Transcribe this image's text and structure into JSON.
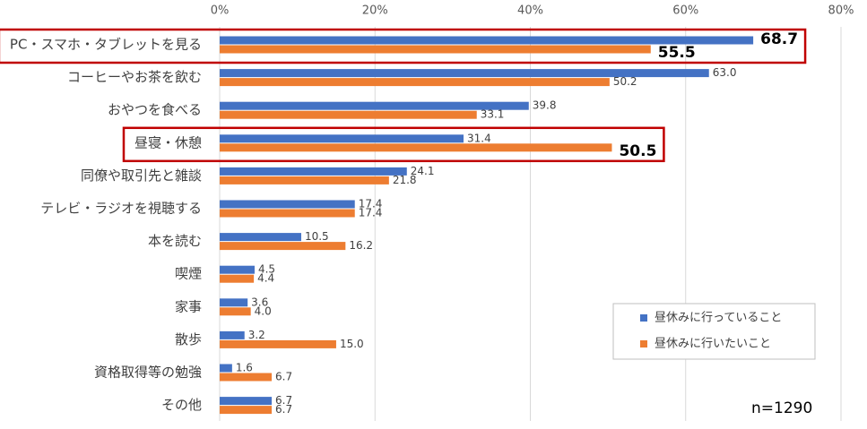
{
  "chart_data": {
    "type": "bar",
    "orientation": "horizontal",
    "categories": [
      "PC・スマホ・タブレットを見る",
      "コーヒーやお茶を飲む",
      "おやつを食べる",
      "昼寝・休憩",
      "同僚や取引先と雑談",
      "テレビ・ラジオを視聴する",
      "本を読む",
      "喫煙",
      "家事",
      "散歩",
      "資格取得等の勉強",
      "その他"
    ],
    "series": [
      {
        "name": "昼休みに行っていること",
        "color": "#4472c4",
        "values": [
          68.7,
          63.0,
          39.8,
          31.4,
          24.1,
          17.4,
          10.5,
          4.5,
          3.6,
          3.2,
          1.6,
          6.7
        ],
        "value_labels": [
          "68.7",
          "63.0",
          "39.8",
          "31.4",
          "24.1",
          "17.4",
          "10.5",
          "4.5",
          "3.6",
          "3.2",
          "1.6",
          "6.7"
        ],
        "bold_labels": [
          0
        ]
      },
      {
        "name": "昼休みに行いたいこと",
        "color": "#ed7d31",
        "values": [
          55.5,
          50.2,
          33.1,
          50.5,
          21.8,
          17.4,
          16.2,
          4.4,
          4.0,
          15.0,
          6.7,
          6.7
        ],
        "value_labels": [
          "55.5",
          "50.2",
          "33.1",
          "50.5",
          "21.8",
          "17.4",
          "16.2",
          "4.4",
          "4.0",
          "15.0",
          "6.7",
          "6.7"
        ],
        "bold_labels": [
          0,
          3
        ]
      }
    ],
    "xlim": [
      0,
      80
    ],
    "xticks": [
      {
        "value": 0,
        "label": "0%"
      },
      {
        "value": 20,
        "label": "20%"
      },
      {
        "value": 40,
        "label": "40%"
      },
      {
        "value": 60,
        "label": "60%"
      },
      {
        "value": 80,
        "label": "80%"
      }
    ],
    "grid": true,
    "legend": "lower right",
    "highlight_categories": [
      0,
      3
    ],
    "highlight_color": "#c00000",
    "annotation": "n=1290"
  }
}
